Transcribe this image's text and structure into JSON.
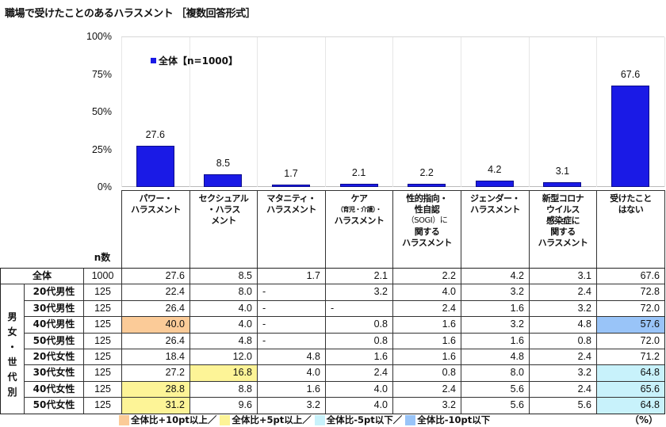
{
  "title": "職場で受けたことのあるハラスメント ［複数回答形式］",
  "colors": {
    "bar": "#1a1ae6",
    "plus10": "#fbcb98",
    "plus5": "#fdf497",
    "minus5": "#c8f2fb",
    "minus10": "#99c4f8"
  },
  "chart_data": {
    "type": "bar",
    "title": "職場で受けたことのあるハラスメント ［複数回答形式］",
    "categories": [
      "パワー・ハラスメント",
      "セクシュアル・ハラスメント",
      "マタニティ・ハラスメント",
      "ケア（育児・介護）・ハラスメント",
      "性的指向・性自認（SOGI）に関するハラスメント",
      "ジェンダー・ハラスメント",
      "新型コロナウイルス感染症に関するハラスメント",
      "受けたことはない"
    ],
    "series": [
      {
        "name": "全体【n=1000】",
        "values": [
          27.6,
          8.5,
          1.7,
          2.1,
          2.2,
          4.2,
          3.1,
          67.6
        ]
      }
    ],
    "xlabel": "",
    "ylabel": "",
    "ylim": [
      0,
      100
    ],
    "yticks": [
      "0%",
      "25%",
      "50%",
      "75%",
      "100%"
    ],
    "legend": "全体【n=1000】",
    "grid": "vertical"
  },
  "legend_label": "全体【n=1000】",
  "yticks": [
    {
      "label": "100%",
      "v": 100
    },
    {
      "label": "75%",
      "v": 75
    },
    {
      "label": "50%",
      "v": 50
    },
    {
      "label": "25%",
      "v": 25
    },
    {
      "label": "0%",
      "v": 0
    }
  ],
  "bar_labels": [
    "27.6",
    "8.5",
    "1.7",
    "2.1",
    "2.2",
    "4.2",
    "3.1",
    "67.6"
  ],
  "table": {
    "n_header": "n数",
    "group_label": "男女・世代別",
    "group_chars": [
      "男",
      "女",
      "・",
      "世",
      "代",
      "別"
    ],
    "headers": [
      [
        "パワー・",
        "ハラスメント"
      ],
      [
        "セクシュアル",
        "・ハラス",
        "メント"
      ],
      [
        "マタニティ・",
        "ハラスメント"
      ],
      [
        "ケア",
        "（育児・介護）・",
        "ハラスメント"
      ],
      [
        "性的指向・",
        "性自認",
        "（SOGI）に",
        "関する",
        "ハラスメント"
      ],
      [
        "ジェンダー・",
        "ハラスメント"
      ],
      [
        "新型コロナ",
        "ウイルス",
        "感染症に",
        "関する",
        "ハラスメント"
      ],
      [
        "受けたこと",
        "はない"
      ]
    ],
    "total_row": {
      "label": "全体",
      "n": "1000",
      "values": [
        "27.6",
        "8.5",
        "1.7",
        "2.1",
        "2.2",
        "4.2",
        "3.1",
        "67.6"
      ]
    },
    "rows": [
      {
        "label": "20代男性",
        "n": "125",
        "values": [
          "22.4",
          "8.0",
          "-",
          "3.2",
          "4.0",
          "3.2",
          "2.4",
          "72.8"
        ],
        "hl": [
          "",
          "",
          "",
          "",
          "",
          "",
          "",
          ""
        ]
      },
      {
        "label": "30代男性",
        "n": "125",
        "values": [
          "26.4",
          "4.0",
          "-",
          "-",
          "2.4",
          "1.6",
          "3.2",
          "72.0"
        ],
        "hl": [
          "",
          "",
          "",
          "",
          "",
          "",
          "",
          ""
        ]
      },
      {
        "label": "40代男性",
        "n": "125",
        "values": [
          "40.0",
          "4.0",
          "-",
          "0.8",
          "1.6",
          "3.2",
          "4.8",
          "57.6"
        ],
        "hl": [
          "plus10",
          "",
          "",
          "",
          "",
          "",
          "",
          "minus10"
        ]
      },
      {
        "label": "50代男性",
        "n": "125",
        "values": [
          "26.4",
          "4.8",
          "-",
          "0.8",
          "1.6",
          "1.6",
          "0.8",
          "72.0"
        ],
        "hl": [
          "",
          "",
          "",
          "",
          "",
          "",
          "",
          ""
        ]
      },
      {
        "label": "20代女性",
        "n": "125",
        "values": [
          "18.4",
          "12.0",
          "4.8",
          "1.6",
          "1.6",
          "4.8",
          "2.4",
          "71.2"
        ],
        "hl": [
          "",
          "",
          "",
          "",
          "",
          "",
          "",
          ""
        ]
      },
      {
        "label": "30代女性",
        "n": "125",
        "values": [
          "27.2",
          "16.8",
          "4.0",
          "2.4",
          "0.8",
          "8.0",
          "3.2",
          "64.8"
        ],
        "hl": [
          "",
          "plus5",
          "",
          "",
          "",
          "",
          "",
          "minus5"
        ]
      },
      {
        "label": "40代女性",
        "n": "125",
        "values": [
          "28.8",
          "8.8",
          "1.6",
          "4.0",
          "2.4",
          "5.6",
          "2.4",
          "65.6"
        ],
        "hl": [
          "plus5",
          "",
          "",
          "",
          "",
          "",
          "",
          "minus5"
        ]
      },
      {
        "label": "50代女性",
        "n": "125",
        "values": [
          "31.2",
          "9.6",
          "3.2",
          "4.0",
          "3.2",
          "5.6",
          "5.6",
          "64.8"
        ],
        "hl": [
          "plus5",
          "",
          "",
          "",
          "",
          "",
          "",
          "minus5"
        ]
      }
    ]
  },
  "footer_legend": [
    {
      "key": "plus10",
      "label": "全体比+10pt以上／"
    },
    {
      "key": "plus5",
      "label": "全体比+5pt以上／"
    },
    {
      "key": "minus5",
      "label": "全体比-5pt以下／"
    },
    {
      "key": "minus10",
      "label": "全体比-10pt以下"
    }
  ],
  "unit": "（%）"
}
